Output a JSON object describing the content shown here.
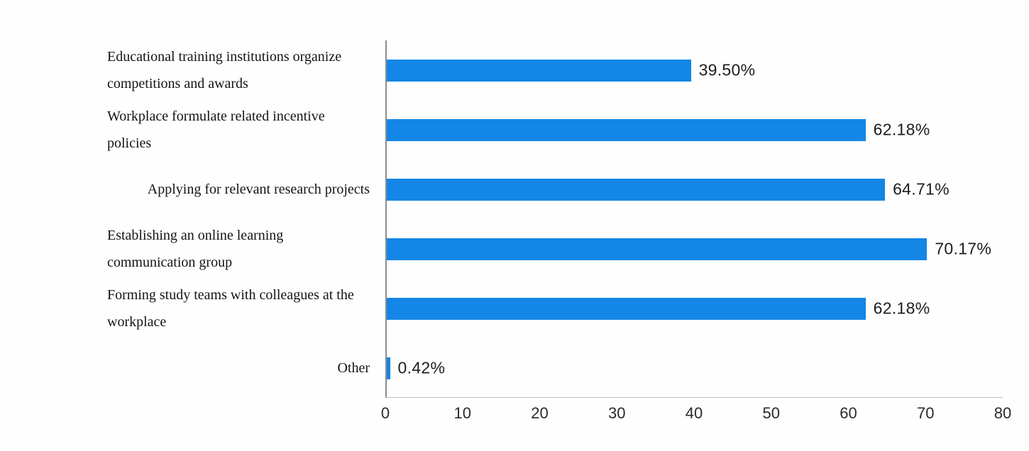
{
  "chart_data": {
    "type": "bar",
    "orientation": "horizontal",
    "title": "",
    "xlabel": "",
    "ylabel": "",
    "grid": false,
    "legend": null,
    "xlim": [
      0,
      80
    ],
    "xticks": [
      0,
      10,
      20,
      30,
      40,
      50,
      60,
      70,
      80
    ],
    "bar_color": "#1386e6",
    "categories": [
      "Educational training institutions organize competitions and awards",
      "Workplace formulate related incentive policies",
      "Applying for relevant research projects",
      "Establishing an online learning communication group",
      "Forming study teams with colleagues at the workplace",
      "Other"
    ],
    "values": [
      39.5,
      62.18,
      64.71,
      70.17,
      62.18,
      0.42
    ],
    "value_labels": [
      "39.50%",
      "62.18%",
      "64.71%",
      "70.17%",
      "62.18%",
      "0.42%"
    ]
  }
}
